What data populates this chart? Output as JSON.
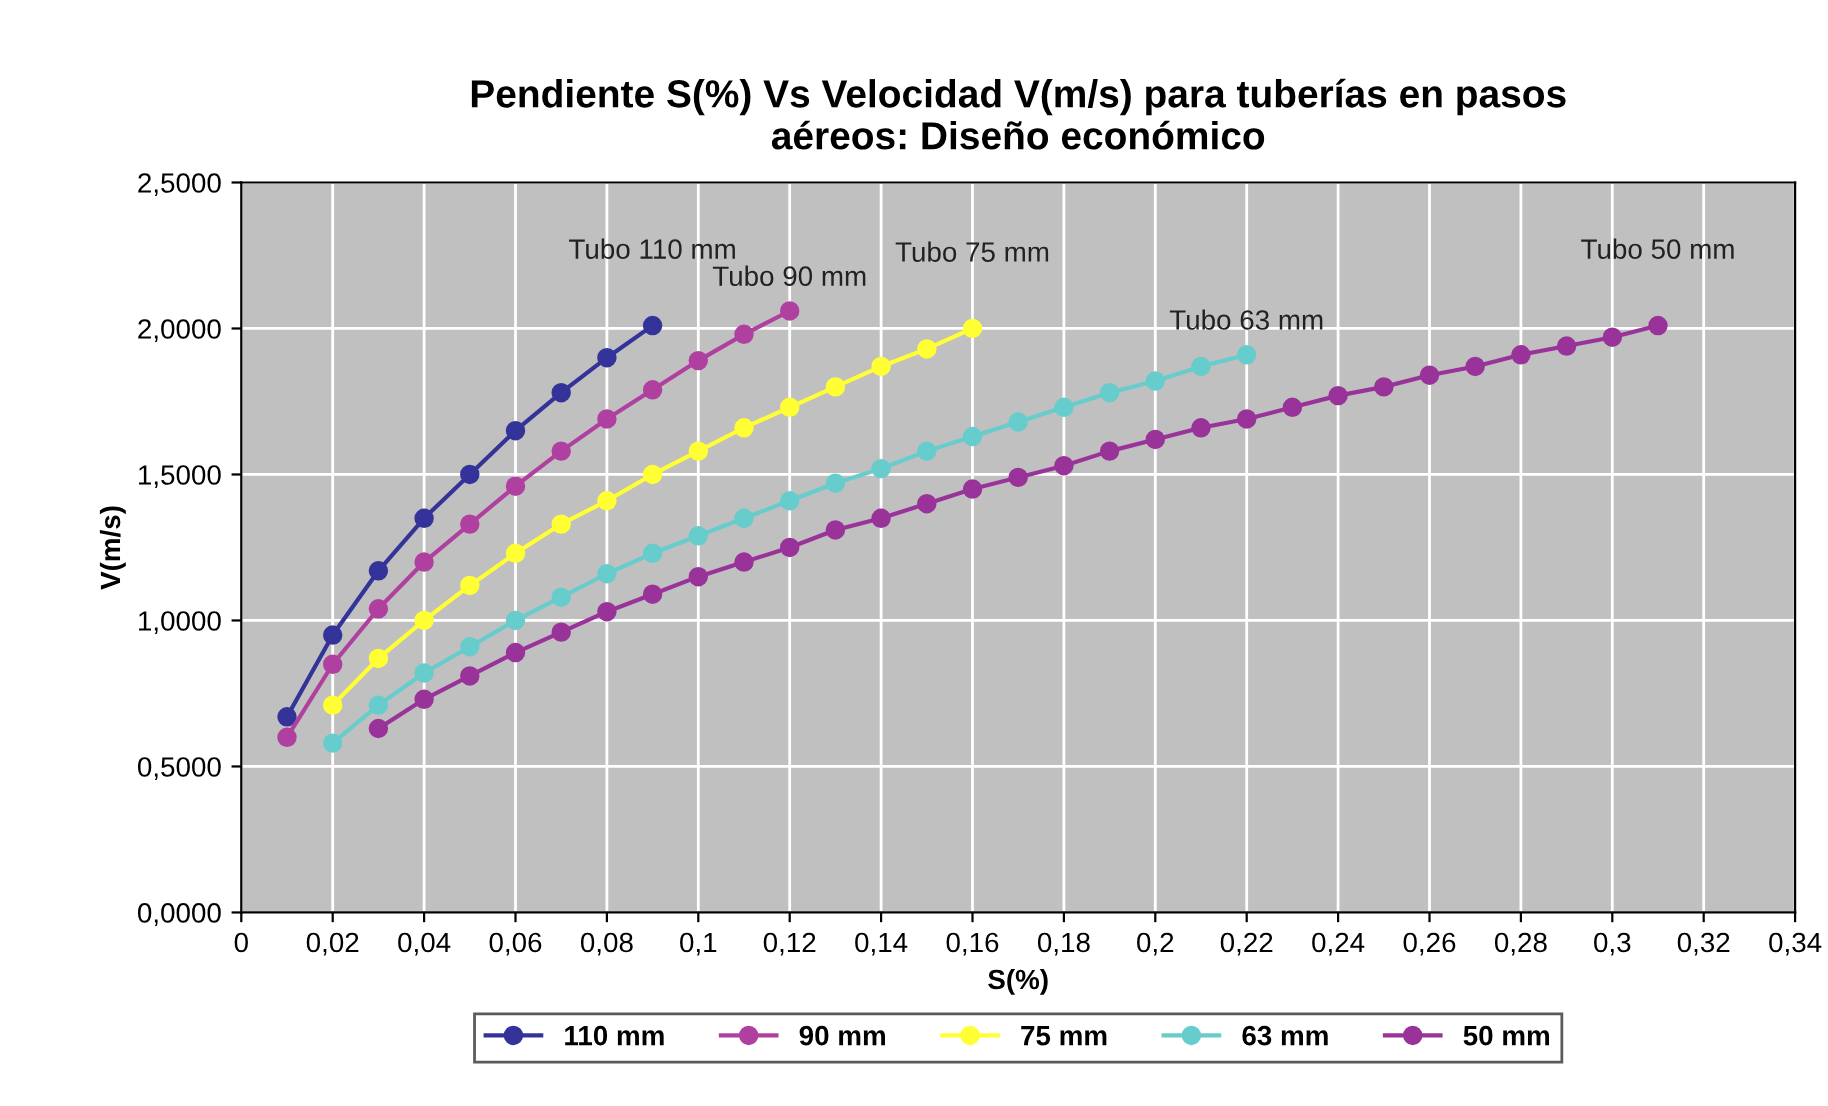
{
  "chart_data": {
    "type": "line",
    "title": "Pendiente S(%) Vs Velocidad V(m/s) para tuberías en pasos\naéreos: Diseño económico",
    "xlabel": "S(%)",
    "ylabel": "V(m/s)",
    "xlim": [
      0,
      0.34
    ],
    "ylim": [
      0,
      2.5
    ],
    "xticks": [
      {
        "value": 0,
        "label": "0"
      },
      {
        "value": 0.02,
        "label": "0,02"
      },
      {
        "value": 0.04,
        "label": "0,04"
      },
      {
        "value": 0.06,
        "label": "0,06"
      },
      {
        "value": 0.08,
        "label": "0,08"
      },
      {
        "value": 0.1,
        "label": "0,1"
      },
      {
        "value": 0.12,
        "label": "0,12"
      },
      {
        "value": 0.14,
        "label": "0,14"
      },
      {
        "value": 0.16,
        "label": "0,16"
      },
      {
        "value": 0.18,
        "label": "0,18"
      },
      {
        "value": 0.2,
        "label": "0,2"
      },
      {
        "value": 0.22,
        "label": "0,22"
      },
      {
        "value": 0.24,
        "label": "0,24"
      },
      {
        "value": 0.26,
        "label": "0,26"
      },
      {
        "value": 0.28,
        "label": "0,28"
      },
      {
        "value": 0.3,
        "label": "0,3"
      },
      {
        "value": 0.32,
        "label": "0,32"
      },
      {
        "value": 0.34,
        "label": "0,34"
      }
    ],
    "yticks": [
      {
        "value": 0,
        "label": "0,0000"
      },
      {
        "value": 0.5,
        "label": "0,5000"
      },
      {
        "value": 1,
        "label": "1,0000"
      },
      {
        "value": 1.5,
        "label": "1,5000"
      },
      {
        "value": 2,
        "label": "2,0000"
      },
      {
        "value": 2.5,
        "label": "2,5000"
      }
    ],
    "grid": true,
    "legend": "bottom",
    "marker": "circle",
    "line_style": "solid",
    "series": [
      {
        "name": "110 mm",
        "color": "#333399",
        "x": [
          0.01,
          0.02,
          0.03,
          0.04,
          0.05,
          0.06,
          0.07,
          0.08,
          0.09
        ],
        "values": [
          0.67,
          0.95,
          1.17,
          1.35,
          1.5,
          1.65,
          1.78,
          1.9,
          2.01
        ]
      },
      {
        "name": "90 mm",
        "color": "#b040a0",
        "x": [
          0.01,
          0.02,
          0.03,
          0.04,
          0.05,
          0.06,
          0.07,
          0.08,
          0.09,
          0.1,
          0.11,
          0.12
        ],
        "values": [
          0.6,
          0.85,
          1.04,
          1.2,
          1.33,
          1.46,
          1.58,
          1.69,
          1.79,
          1.89,
          1.98,
          2.06
        ]
      },
      {
        "name": "75 mm",
        "color": "#ffff33",
        "x": [
          0.02,
          0.03,
          0.04,
          0.05,
          0.06,
          0.07,
          0.08,
          0.09,
          0.1,
          0.11,
          0.12,
          0.13,
          0.14,
          0.15,
          0.16
        ],
        "values": [
          0.71,
          0.87,
          1.0,
          1.12,
          1.23,
          1.33,
          1.41,
          1.5,
          1.58,
          1.66,
          1.73,
          1.8,
          1.87,
          1.93,
          2.0
        ]
      },
      {
        "name": "63 mm",
        "color": "#66cccc",
        "x": [
          0.02,
          0.03,
          0.04,
          0.05,
          0.06,
          0.07,
          0.08,
          0.09,
          0.1,
          0.11,
          0.12,
          0.13,
          0.14,
          0.15,
          0.16,
          0.17,
          0.18,
          0.19,
          0.2,
          0.21,
          0.22
        ],
        "values": [
          0.58,
          0.71,
          0.82,
          0.91,
          1.0,
          1.08,
          1.16,
          1.23,
          1.29,
          1.35,
          1.41,
          1.47,
          1.52,
          1.58,
          1.63,
          1.68,
          1.73,
          1.78,
          1.82,
          1.87,
          1.91
        ]
      },
      {
        "name": "50 mm",
        "color": "#993399",
        "x": [
          0.03,
          0.04,
          0.05,
          0.06,
          0.07,
          0.08,
          0.09,
          0.1,
          0.11,
          0.12,
          0.13,
          0.14,
          0.15,
          0.16,
          0.17,
          0.18,
          0.19,
          0.2,
          0.21,
          0.22,
          0.23,
          0.24,
          0.25,
          0.26,
          0.27,
          0.28,
          0.29,
          0.3,
          0.31
        ],
        "values": [
          0.63,
          0.73,
          0.81,
          0.89,
          0.96,
          1.03,
          1.09,
          1.15,
          1.2,
          1.25,
          1.31,
          1.35,
          1.4,
          1.45,
          1.49,
          1.53,
          1.58,
          1.62,
          1.66,
          1.69,
          1.73,
          1.77,
          1.8,
          1.84,
          1.87,
          1.91,
          1.94,
          1.97,
          2.01
        ]
      }
    ],
    "annotations": [
      {
        "text": "Tubo 110 mm",
        "x": 0.09,
        "y": 2.01
      },
      {
        "text": "Tubo 90 mm",
        "x": 0.12,
        "y": 2.06
      },
      {
        "text": "Tubo 75 mm",
        "x": 0.16,
        "y": 2.0
      },
      {
        "text": "Tubo 63 mm",
        "x": 0.22,
        "y": 1.91
      },
      {
        "text": "Tubo 50 mm",
        "x": 0.31,
        "y": 2.01
      }
    ]
  }
}
